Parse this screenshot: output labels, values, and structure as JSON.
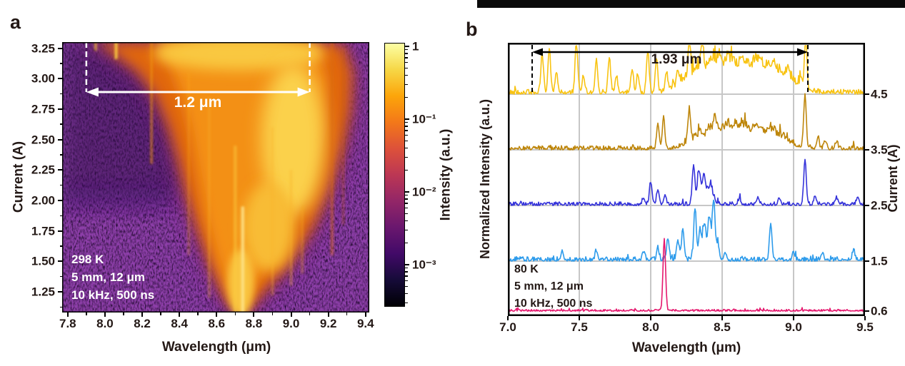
{
  "figure": {
    "panel_a": {
      "label": "a",
      "xlabel": "Wavelength (μm)",
      "ylabel": "Current (A)",
      "x_tick_labels": [
        "7.8",
        "8.0",
        "8.2",
        "8.4",
        "8.6",
        "8.8",
        "9.0",
        "9.2",
        "9.4"
      ],
      "y_tick_labels": [
        "3.25",
        "3.00",
        "2.75",
        "2.50",
        "2.25",
        "2.00",
        "1.75",
        "1.50",
        "1.25"
      ],
      "annotation_lines": [
        "298 K",
        "5 mm, 12 μm",
        "10 kHz, 500 ns"
      ],
      "span_annotation": {
        "label": "1.2 μm",
        "from_um": 7.9,
        "to_um": 9.1,
        "at_current_A": 2.89
      },
      "colorbar": {
        "label": "Intensity (a.u.)",
        "scale": "log",
        "tick_labels": [
          "1",
          "10⁻¹",
          "10⁻²",
          "10⁻³"
        ],
        "gradient_stops": [
          [
            "0%",
            "#FCFFA4"
          ],
          [
            "10%",
            "#F6D746"
          ],
          [
            "20%",
            "#FCA50A"
          ],
          [
            "30%",
            "#F37819"
          ],
          [
            "40%",
            "#DD513A"
          ],
          [
            "50%",
            "#BC3754"
          ],
          [
            "60%",
            "#932667"
          ],
          [
            "70%",
            "#6A176E"
          ],
          [
            "80%",
            "#420A68"
          ],
          [
            "90%",
            "#160B39"
          ],
          [
            "100%",
            "#000004"
          ]
        ]
      }
    },
    "panel_b": {
      "label": "b",
      "xlabel": "Wavelength (μm)",
      "ylabel_left": "Normalized Intensity (a.u.)",
      "ylabel_right": "Current (A)",
      "x_tick_labels": [
        "7.0",
        "7.5",
        "8.0",
        "8.5",
        "9.0",
        "9.5"
      ],
      "right_tick_labels": [
        "4.5",
        "3.5",
        "2.5",
        "1.5",
        "0.6"
      ],
      "right_tick_currents": [
        4.5,
        3.5,
        2.5,
        1.5,
        0.6
      ],
      "annotation_lines": [
        "80 K",
        "5 mm, 12 μm",
        "10 kHz, 500 ns"
      ],
      "span_annotation": {
        "label": "1.93 μm",
        "from_um": 7.17,
        "to_um": 9.1
      }
    }
  },
  "chart_data": [
    {
      "type": "heatmap",
      "panel": "a",
      "xlabel": "Wavelength (μm)",
      "ylabel": "Current (A)",
      "x_range_um": [
        7.77,
        9.42
      ],
      "y_range_A": [
        1.08,
        3.3
      ],
      "x_ticks": [
        7.8,
        8.0,
        8.2,
        8.4,
        8.6,
        8.8,
        9.0,
        9.2,
        9.4
      ],
      "y_ticks": [
        3.25,
        3.0,
        2.75,
        2.5,
        2.25,
        2.0,
        1.75,
        1.5,
        1.25
      ],
      "intensity_scale": "log",
      "intensity_range": [
        0.0003,
        1
      ],
      "colormap": "inferno",
      "conditions": [
        "298 K",
        "5 mm, 12 μm",
        "10 kHz, 500 ns"
      ],
      "tuning_span": {
        "from_um": 7.9,
        "to_um": 9.1,
        "label": "1.2 μm",
        "at_current_A": 2.89
      },
      "background": {
        "base_color": "#130220",
        "light_regions": [
          {
            "w0": 7.77,
            "w1": 8.42,
            "c_top": 3.3,
            "c_bot": 2.02,
            "color": "#31094C",
            "opacity": 0.5
          },
          {
            "w0": 7.77,
            "w1": 8.35,
            "c_top": 2.1,
            "c_bot": 1.93,
            "color": "#41106A",
            "opacity": 0.45
          }
        ]
      },
      "emission_region": {
        "halo_color": "#7E2071",
        "outline_um_A": [
          [
            7.95,
            3.3
          ],
          [
            9.1,
            3.3
          ],
          [
            9.28,
            3.28
          ],
          [
            9.33,
            3.05
          ],
          [
            9.32,
            2.75
          ],
          [
            9.28,
            2.45
          ],
          [
            9.21,
            2.1
          ],
          [
            9.12,
            1.78
          ],
          [
            8.99,
            1.47
          ],
          [
            8.86,
            1.26
          ],
          [
            8.77,
            1.1
          ],
          [
            8.7,
            1.09
          ],
          [
            8.64,
            1.22
          ],
          [
            8.57,
            1.45
          ],
          [
            8.5,
            1.74
          ],
          [
            8.44,
            2.04
          ],
          [
            8.39,
            2.34
          ],
          [
            8.34,
            2.6
          ],
          [
            8.27,
            2.86
          ],
          [
            8.17,
            3.06
          ],
          [
            8.04,
            3.21
          ]
        ],
        "outline_color": "#E0660F",
        "mid_um_A": [
          [
            8.28,
            3.3
          ],
          [
            9.12,
            3.3
          ],
          [
            9.19,
            3.0
          ],
          [
            9.17,
            2.6
          ],
          [
            9.1,
            2.18
          ],
          [
            9.0,
            1.84
          ],
          [
            8.89,
            1.52
          ],
          [
            8.79,
            1.27
          ],
          [
            8.72,
            1.12
          ],
          [
            8.66,
            1.26
          ],
          [
            8.6,
            1.52
          ],
          [
            8.54,
            1.86
          ],
          [
            8.5,
            2.2
          ],
          [
            8.46,
            2.55
          ],
          [
            8.41,
            2.86
          ],
          [
            8.35,
            3.1
          ]
        ],
        "mid_color": "#F59312",
        "cores": [
          {
            "w": 8.72,
            "c": 3.21,
            "rw": 0.46,
            "rc": 0.14,
            "color": "#F9C83F",
            "blur": "f10"
          },
          {
            "w": 9.01,
            "c": 2.5,
            "rw": 0.17,
            "rc": 0.62,
            "color": "#FBD14C",
            "blur": "f14"
          },
          {
            "w": 8.88,
            "c": 1.78,
            "rw": 0.14,
            "rc": 0.36,
            "color": "#F8BC35",
            "blur": "f10"
          },
          {
            "w": 8.73,
            "c": 1.32,
            "rw": 0.07,
            "rc": 0.28,
            "color": "#F9C53F",
            "blur": "f7"
          }
        ],
        "streaks": [
          {
            "w": 8.25,
            "c0": 3.3,
            "c1": 2.3,
            "color": "#F0940F",
            "opacity": 0.7,
            "width": 3
          },
          {
            "w": 8.06,
            "c0": 3.3,
            "c1": 3.16,
            "color": "#FBCB40",
            "opacity": 0.95,
            "width": 4
          },
          {
            "w": 7.95,
            "c0": 3.3,
            "c1": 3.23,
            "color": "#F9C035",
            "opacity": 0.85,
            "width": 3
          },
          {
            "w": 8.45,
            "c0": 3.05,
            "c1": 1.55,
            "color": "#F7A81E",
            "opacity": 0.35,
            "width": 3
          },
          {
            "w": 8.56,
            "c0": 2.85,
            "c1": 1.2,
            "color": "#F9B32A",
            "opacity": 0.4,
            "width": 3
          },
          {
            "w": 8.7,
            "c0": 2.45,
            "c1": 1.08,
            "color": "#FBCB40",
            "opacity": 0.55,
            "width": 4
          },
          {
            "w": 8.74,
            "c0": 1.95,
            "c1": 1.08,
            "color": "#FDE38A",
            "opacity": 0.95,
            "width": 4
          },
          {
            "w": 8.9,
            "c0": 2.6,
            "c1": 1.22,
            "color": "#F9B32A",
            "opacity": 0.4,
            "width": 3
          },
          {
            "w": 9.0,
            "c0": 2.25,
            "c1": 1.3,
            "color": "#F9B32A",
            "opacity": 0.45,
            "width": 3
          },
          {
            "w": 9.06,
            "c0": 1.95,
            "c1": 1.4,
            "color": "#F7A81E",
            "opacity": 0.4,
            "width": 3
          },
          {
            "w": 9.22,
            "c0": 3.3,
            "c1": 1.55,
            "color": "#D96A12",
            "opacity": 0.55,
            "width": 4
          },
          {
            "w": 9.28,
            "c0": 3.25,
            "c1": 1.8,
            "color": "#C25808",
            "opacity": 0.4,
            "width": 3
          }
        ]
      }
    },
    {
      "type": "line",
      "panel": "b",
      "xlabel": "Wavelength (μm)",
      "ylabel": "Normalized Intensity (a.u.)",
      "right_axis_label": "Current (A)",
      "x_range_um": [
        7.0,
        9.5
      ],
      "x_ticks": [
        7.0,
        7.5,
        8.0,
        8.5,
        9.0,
        9.5
      ],
      "grid": true,
      "grid_color": "#C7C7C7",
      "conditions": [
        "80 K",
        "5 mm, 12 μm",
        "10 kHz, 500 ns"
      ],
      "tuning_span": {
        "from_um": 7.17,
        "to_um": 9.1,
        "label": "1.93 μm"
      },
      "traces": [
        {
          "current_A": 4.5,
          "color": "#F8C312",
          "noise_au": 0.09,
          "peaks_um_au": [
            [
              7.24,
              0.7
            ],
            [
              7.29,
              0.8
            ],
            [
              7.34,
              0.38
            ],
            [
              7.48,
              0.92
            ],
            [
              7.53,
              0.3
            ],
            [
              7.62,
              0.6
            ],
            [
              7.71,
              0.64
            ],
            [
              7.76,
              0.28
            ],
            [
              7.87,
              0.44
            ],
            [
              7.91,
              0.34
            ],
            [
              7.98,
              0.74
            ],
            [
              8.04,
              0.55
            ],
            [
              8.11,
              0.34
            ],
            [
              8.19,
              0.3
            ],
            [
              8.27,
              0.62
            ],
            [
              8.36,
              0.5
            ],
            [
              8.48,
              0.25
            ],
            [
              9.085,
              0.87
            ]
          ],
          "bands_um_au": [
            [
              8.62,
              0.4,
              0.6
            ]
          ]
        },
        {
          "current_A": 3.5,
          "color": "#BE860B",
          "noise_au": 0.075,
          "peaks_um_au": [
            [
              8.05,
              0.45
            ],
            [
              8.09,
              0.55
            ],
            [
              8.27,
              0.6
            ],
            [
              8.45,
              0.16
            ],
            [
              8.6,
              0.13
            ],
            [
              9.08,
              0.95
            ],
            [
              9.17,
              0.18
            ],
            [
              9.22,
              0.15
            ],
            [
              9.3,
              0.13
            ]
          ],
          "bands_um_au": [
            [
              8.62,
              0.34,
              0.42
            ]
          ]
        },
        {
          "current_A": 2.5,
          "color": "#3533DA",
          "noise_au": 0.065,
          "peaks_um_au": [
            [
              7.95,
              0.13
            ],
            [
              8.0,
              0.41
            ],
            [
              8.05,
              0.28
            ],
            [
              8.1,
              0.18
            ],
            [
              8.3,
              0.72
            ],
            [
              8.335,
              0.49
            ],
            [
              8.37,
              0.26
            ],
            [
              8.62,
              0.1
            ],
            [
              8.75,
              0.13
            ],
            [
              8.9,
              0.12
            ],
            [
              9.08,
              0.79
            ],
            [
              9.15,
              0.15
            ],
            [
              9.3,
              0.13
            ],
            [
              9.45,
              0.15
            ]
          ],
          "bands_um_au": [
            [
              8.39,
              0.06,
              0.3
            ]
          ]
        },
        {
          "current_A": 1.5,
          "color": "#2D9BEB",
          "noise_au": 0.08,
          "peaks_um_au": [
            [
              7.38,
              0.15
            ],
            [
              7.62,
              0.17
            ],
            [
              7.95,
              0.14
            ],
            [
              8.05,
              0.21
            ],
            [
              8.12,
              0.38
            ],
            [
              8.19,
              0.36
            ],
            [
              8.225,
              0.56
            ],
            [
              8.31,
              0.9
            ],
            [
              8.345,
              0.36
            ],
            [
              8.375,
              0.44
            ],
            [
              8.41,
              0.51
            ],
            [
              8.44,
              0.77
            ],
            [
              8.47,
              0.23
            ],
            [
              8.52,
              0.15
            ],
            [
              8.84,
              0.67
            ],
            [
              9.0,
              0.13
            ],
            [
              9.2,
              0.13
            ],
            [
              9.42,
              0.18
            ]
          ],
          "bands_um_au": [
            [
              8.4,
              0.07,
              0.28
            ]
          ]
        },
        {
          "current_A": 0.6,
          "color": "#E5186E",
          "noise_au": 0.032,
          "peaks_um_au": [
            [
              8.095,
              1.28
            ]
          ],
          "bands_um_au": []
        }
      ]
    }
  ]
}
